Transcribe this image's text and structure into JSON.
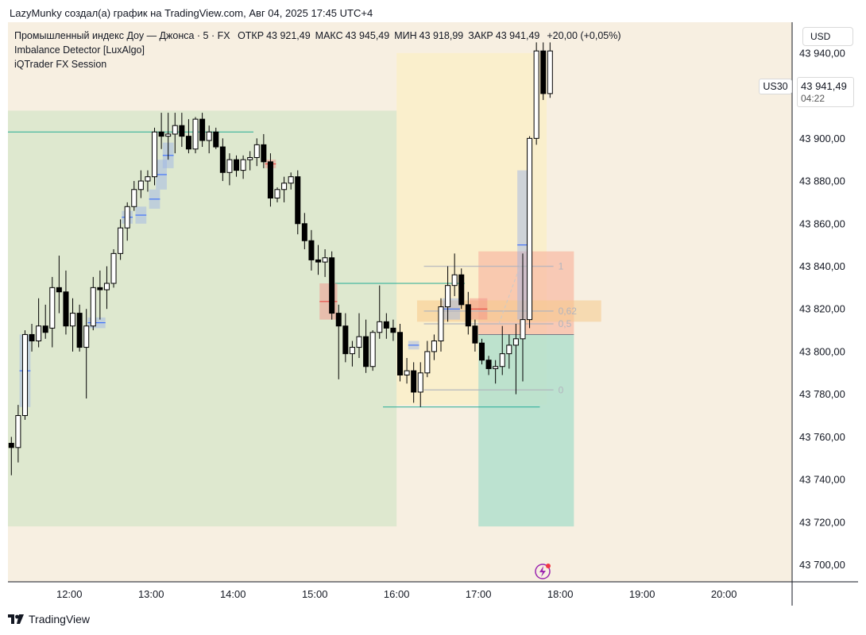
{
  "caption": "LazyMunky создал(а) график на TradingView.com, Авг 04, 2025 17:45 UTC+4",
  "legend": {
    "symbol_line": "Промышленный индекс Доу — Джонса · 5 · FX",
    "ohlc": [
      {
        "key": "ОТКР",
        "value": "43 921,49"
      },
      {
        "key": "МАКС",
        "value": "43 945,49"
      },
      {
        "key": "МИН",
        "value": "43 918,99"
      },
      {
        "key": "ЗАКР",
        "value": "43 941,49"
      },
      {
        "key": "",
        "value": "+20,00 (+0,05%)"
      }
    ],
    "indicator_1": "Imbalance Detector [LuxAlgo]",
    "indicator_2": "iQTrader FX Session"
  },
  "price_axis": {
    "currency": "USD",
    "symbol_tag": "US30",
    "last_price": "43 941,49",
    "countdown": "04:22",
    "ticks": [
      "43 940,00",
      "43 920,00",
      "43 900,00",
      "43 880,00",
      "43 860,00",
      "43 840,00",
      "43 820,00",
      "43 800,00",
      "43 780,00",
      "43 760,00",
      "43 740,00",
      "43 720,00",
      "43 700,00"
    ]
  },
  "time_axis": {
    "ticks": [
      "12:00",
      "13:00",
      "14:00",
      "15:00",
      "16:00",
      "17:00",
      "18:00",
      "19:00",
      "20:00"
    ]
  },
  "fib_labels": [
    {
      "label": "1",
      "level": 43840
    },
    {
      "label": "0,62",
      "level": 43819
    },
    {
      "label": "0,5",
      "level": 43813
    },
    {
      "label": "0",
      "level": 43782
    }
  ],
  "footer": {
    "brand": "TradingView"
  },
  "colors": {
    "background": "#f7efe1",
    "session_green": "#d6e5c8",
    "session_yellow": "#fbefc4",
    "bull_body": "#ffffff",
    "bear_body": "#000000",
    "imbalance_blue": "#9ab2e6",
    "imbalance_red": "#f28b82",
    "level_line": "#22ab94",
    "target_zone": "#b2dfcc",
    "stop_zone": "#f8b9a3",
    "fib_line": "#b2b5be"
  },
  "chart_data": {
    "type": "candlestick",
    "symbol": "US30",
    "interval": "5",
    "y_range": [
      43695,
      43950
    ],
    "x_range": [
      "11:15",
      "20:50"
    ],
    "candles": [
      {
        "t": "11:15",
        "o": 43757,
        "h": 43760,
        "l": 43742,
        "c": 43755
      },
      {
        "t": "11:20",
        "o": 43755,
        "h": 43775,
        "l": 43748,
        "c": 43770
      },
      {
        "t": "11:25",
        "o": 43770,
        "h": 43810,
        "l": 43768,
        "c": 43808
      },
      {
        "t": "11:30",
        "o": 43808,
        "h": 43813,
        "l": 43800,
        "c": 43805
      },
      {
        "t": "11:35",
        "o": 43805,
        "h": 43825,
        "l": 43802,
        "c": 43812
      },
      {
        "t": "11:40",
        "o": 43812,
        "h": 43822,
        "l": 43806,
        "c": 43809
      },
      {
        "t": "11:45",
        "o": 43811,
        "h": 43835,
        "l": 43802,
        "c": 43830
      },
      {
        "t": "11:50",
        "o": 43830,
        "h": 43845,
        "l": 43818,
        "c": 43828
      },
      {
        "t": "11:55",
        "o": 43828,
        "h": 43838,
        "l": 43808,
        "c": 43812
      },
      {
        "t": "12:00",
        "o": 43812,
        "h": 43825,
        "l": 43800,
        "c": 43818
      },
      {
        "t": "12:05",
        "o": 43818,
        "h": 43822,
        "l": 43800,
        "c": 43802
      },
      {
        "t": "12:10",
        "o": 43802,
        "h": 43820,
        "l": 43778,
        "c": 43812
      },
      {
        "t": "12:15",
        "o": 43812,
        "h": 43835,
        "l": 43810,
        "c": 43830
      },
      {
        "t": "12:20",
        "o": 43830,
        "h": 43838,
        "l": 43815,
        "c": 43829
      },
      {
        "t": "12:25",
        "o": 43829,
        "h": 43840,
        "l": 43820,
        "c": 43832
      },
      {
        "t": "12:30",
        "o": 43832,
        "h": 43848,
        "l": 43830,
        "c": 43846
      },
      {
        "t": "12:35",
        "o": 43846,
        "h": 43862,
        "l": 43843,
        "c": 43858
      },
      {
        "t": "12:40",
        "o": 43858,
        "h": 43870,
        "l": 43852,
        "c": 43868
      },
      {
        "t": "12:45",
        "o": 43868,
        "h": 43880,
        "l": 43866,
        "c": 43876
      },
      {
        "t": "12:50",
        "o": 43876,
        "h": 43885,
        "l": 43872,
        "c": 43880
      },
      {
        "t": "12:55",
        "o": 43880,
        "h": 43885,
        "l": 43875,
        "c": 43882
      },
      {
        "t": "13:00",
        "o": 43882,
        "h": 43905,
        "l": 43878,
        "c": 43903
      },
      {
        "t": "13:05",
        "o": 43903,
        "h": 43912,
        "l": 43895,
        "c": 43901
      },
      {
        "t": "13:10",
        "o": 43901,
        "h": 43912,
        "l": 43890,
        "c": 43902
      },
      {
        "t": "13:15",
        "o": 43902,
        "h": 43912,
        "l": 43893,
        "c": 43906
      },
      {
        "t": "13:20",
        "o": 43906,
        "h": 43912,
        "l": 43896,
        "c": 43901
      },
      {
        "t": "13:25",
        "o": 43901,
        "h": 43909,
        "l": 43893,
        "c": 43895
      },
      {
        "t": "13:30",
        "o": 43895,
        "h": 43910,
        "l": 43893,
        "c": 43909
      },
      {
        "t": "13:35",
        "o": 43909,
        "h": 43912,
        "l": 43896,
        "c": 43899
      },
      {
        "t": "13:40",
        "o": 43899,
        "h": 43906,
        "l": 43893,
        "c": 43903
      },
      {
        "t": "13:45",
        "o": 43903,
        "h": 43905,
        "l": 43895,
        "c": 43896
      },
      {
        "t": "13:50",
        "o": 43896,
        "h": 43900,
        "l": 43880,
        "c": 43884
      },
      {
        "t": "13:55",
        "o": 43884,
        "h": 43893,
        "l": 43878,
        "c": 43890
      },
      {
        "t": "14:00",
        "o": 43890,
        "h": 43892,
        "l": 43882,
        "c": 43885
      },
      {
        "t": "14:05",
        "o": 43885,
        "h": 43892,
        "l": 43881,
        "c": 43890
      },
      {
        "t": "14:10",
        "o": 43890,
        "h": 43894,
        "l": 43885,
        "c": 43891
      },
      {
        "t": "14:15",
        "o": 43891,
        "h": 43900,
        "l": 43887,
        "c": 43897
      },
      {
        "t": "14:20",
        "o": 43897,
        "h": 43902,
        "l": 43886,
        "c": 43889
      },
      {
        "t": "14:25",
        "o": 43889,
        "h": 43893,
        "l": 43868,
        "c": 43872
      },
      {
        "t": "14:30",
        "o": 43872,
        "h": 43877,
        "l": 43870,
        "c": 43876
      },
      {
        "t": "14:35",
        "o": 43876,
        "h": 43882,
        "l": 43870,
        "c": 43879
      },
      {
        "t": "14:40",
        "o": 43879,
        "h": 43884,
        "l": 43876,
        "c": 43882
      },
      {
        "t": "14:45",
        "o": 43882,
        "h": 43885,
        "l": 43855,
        "c": 43860
      },
      {
        "t": "14:50",
        "o": 43860,
        "h": 43865,
        "l": 43848,
        "c": 43852
      },
      {
        "t": "14:55",
        "o": 43852,
        "h": 43857,
        "l": 43838,
        "c": 43843
      },
      {
        "t": "15:00",
        "o": 43843,
        "h": 43850,
        "l": 43836,
        "c": 43842
      },
      {
        "t": "15:05",
        "o": 43842,
        "h": 43848,
        "l": 43835,
        "c": 43844
      },
      {
        "t": "15:10",
        "o": 43844,
        "h": 43847,
        "l": 43815,
        "c": 43818
      },
      {
        "t": "15:15",
        "o": 43818,
        "h": 43822,
        "l": 43787,
        "c": 43812
      },
      {
        "t": "15:20",
        "o": 43812,
        "h": 43818,
        "l": 43795,
        "c": 43799
      },
      {
        "t": "15:25",
        "o": 43799,
        "h": 43805,
        "l": 43793,
        "c": 43802
      },
      {
        "t": "15:30",
        "o": 43802,
        "h": 43818,
        "l": 43797,
        "c": 43807
      },
      {
        "t": "15:35",
        "o": 43807,
        "h": 43815,
        "l": 43790,
        "c": 43793
      },
      {
        "t": "15:40",
        "o": 43793,
        "h": 43810,
        "l": 43791,
        "c": 43809
      },
      {
        "t": "15:45",
        "o": 43809,
        "h": 43831,
        "l": 43806,
        "c": 43814
      },
      {
        "t": "15:50",
        "o": 43814,
        "h": 43818,
        "l": 43806,
        "c": 43811
      },
      {
        "t": "15:55",
        "o": 43811,
        "h": 43815,
        "l": 43805,
        "c": 43809
      },
      {
        "t": "16:00",
        "o": 43809,
        "h": 43813,
        "l": 43786,
        "c": 43789
      },
      {
        "t": "16:05",
        "o": 43789,
        "h": 43797,
        "l": 43785,
        "c": 43791
      },
      {
        "t": "16:10",
        "o": 43791,
        "h": 43795,
        "l": 43776,
        "c": 43781
      },
      {
        "t": "16:15",
        "o": 43781,
        "h": 43795,
        "l": 43774,
        "c": 43790
      },
      {
        "t": "16:20",
        "o": 43790,
        "h": 43805,
        "l": 43788,
        "c": 43800
      },
      {
        "t": "16:25",
        "o": 43800,
        "h": 43808,
        "l": 43796,
        "c": 43805
      },
      {
        "t": "16:30",
        "o": 43805,
        "h": 43825,
        "l": 43800,
        "c": 43821
      },
      {
        "t": "16:35",
        "o": 43821,
        "h": 43840,
        "l": 43814,
        "c": 43831
      },
      {
        "t": "16:40",
        "o": 43831,
        "h": 43846,
        "l": 43826,
        "c": 43836
      },
      {
        "t": "16:45",
        "o": 43836,
        "h": 43839,
        "l": 43820,
        "c": 43822
      },
      {
        "t": "16:50",
        "o": 43822,
        "h": 43828,
        "l": 43808,
        "c": 43812
      },
      {
        "t": "16:55",
        "o": 43812,
        "h": 43815,
        "l": 43800,
        "c": 43804
      },
      {
        "t": "17:00",
        "o": 43804,
        "h": 43806,
        "l": 43794,
        "c": 43796
      },
      {
        "t": "17:05",
        "o": 43796,
        "h": 43798,
        "l": 43789,
        "c": 43792
      },
      {
        "t": "17:10",
        "o": 43792,
        "h": 43796,
        "l": 43785,
        "c": 43793
      },
      {
        "t": "17:15",
        "o": 43793,
        "h": 43812,
        "l": 43789,
        "c": 43799
      },
      {
        "t": "17:20",
        "o": 43799,
        "h": 43808,
        "l": 43792,
        "c": 43803
      },
      {
        "t": "17:25",
        "o": 43803,
        "h": 43813,
        "l": 43780,
        "c": 43806
      },
      {
        "t": "17:30",
        "o": 43806,
        "h": 43846,
        "l": 43786,
        "c": 43815
      },
      {
        "t": "17:35",
        "o": 43815,
        "h": 43901,
        "l": 43811,
        "c": 43900
      },
      {
        "t": "17:40",
        "o": 43900,
        "h": 43945,
        "l": 43897,
        "c": 43941
      },
      {
        "t": "17:45",
        "o": 43941,
        "h": 43945,
        "l": 43918,
        "c": 43921
      },
      {
        "t": "17:50",
        "o": 43921,
        "h": 43945,
        "l": 43919,
        "c": 43941
      }
    ],
    "sessions": [
      {
        "start": "11:15",
        "end": "16:00",
        "low": 43718,
        "high": 43913,
        "color": "session_green"
      },
      {
        "start": "16:00",
        "end": "17:50",
        "low": 43775,
        "high": 43940,
        "color": "session_yellow"
      }
    ],
    "levels": [
      {
        "start": "11:15",
        "end": "14:15",
        "price": 43903
      },
      {
        "start": "15:15",
        "end": "16:50",
        "price": 43832
      },
      {
        "start": "15:50",
        "end": "17:45",
        "price": 43774
      }
    ],
    "imbalances": [
      {
        "start": "11:25",
        "end": "11:30",
        "low": 43774,
        "high": 43808,
        "dir": "bull"
      },
      {
        "start": "12:15",
        "end": "12:25",
        "low": 43811,
        "high": 43816,
        "dir": "bull"
      },
      {
        "start": "12:40",
        "end": "12:45",
        "low": 43860,
        "high": 43866,
        "dir": "bull"
      },
      {
        "start": "12:50",
        "end": "12:55",
        "low": 43860,
        "high": 43868,
        "dir": "bull"
      },
      {
        "start": "13:00",
        "end": "13:05",
        "low": 43867,
        "high": 43876,
        "dir": "bull"
      },
      {
        "start": "13:05",
        "end": "13:10",
        "low": 43876,
        "high": 43890,
        "dir": "bull"
      },
      {
        "start": "13:10",
        "end": "13:15",
        "low": 43886,
        "high": 43898,
        "dir": "bull"
      },
      {
        "start": "14:25",
        "end": "14:30",
        "low": 43886,
        "high": 43890,
        "dir": "bear"
      },
      {
        "start": "15:05",
        "end": "15:15",
        "low": 43815,
        "high": 43832,
        "dir": "bear"
      },
      {
        "start": "16:10",
        "end": "16:15",
        "low": 43801,
        "high": 43805,
        "dir": "bull"
      },
      {
        "start": "16:35",
        "end": "16:45",
        "low": 43815,
        "high": 43825,
        "dir": "bull"
      },
      {
        "start": "16:55",
        "end": "17:05",
        "low": 43815,
        "high": 43825,
        "dir": "bear"
      },
      {
        "start": "17:30",
        "end": "17:35",
        "low": 43815,
        "high": 43885,
        "dir": "bull"
      }
    ],
    "fib_zone": {
      "start": "16:15",
      "end": "18:30",
      "low": 43814,
      "high": 43824
    },
    "position": {
      "start": "17:00",
      "end": "18:10",
      "entry": 43808,
      "stop": 43847,
      "target": 43718
    }
  }
}
